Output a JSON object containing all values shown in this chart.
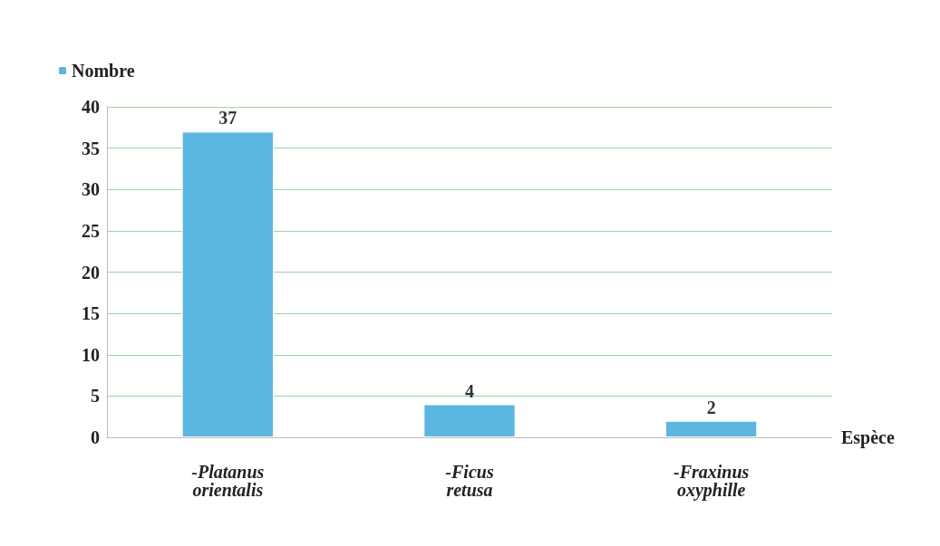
{
  "chart_data": {
    "type": "bar",
    "xlabel": "Espèce",
    "categories": [
      "-Platanus orientalis",
      "-Ficus retusa",
      "-Fraxinus oxyphille"
    ],
    "series": [
      {
        "name": "Nombre",
        "color": "#5bb7e0",
        "values": [
          37,
          4,
          2
        ]
      }
    ],
    "ylim": [
      0,
      40
    ],
    "yticks": [
      0,
      5,
      10,
      15,
      20,
      25,
      30,
      35,
      40
    ],
    "grid": "y",
    "legend": "top left",
    "data_labels": true
  }
}
